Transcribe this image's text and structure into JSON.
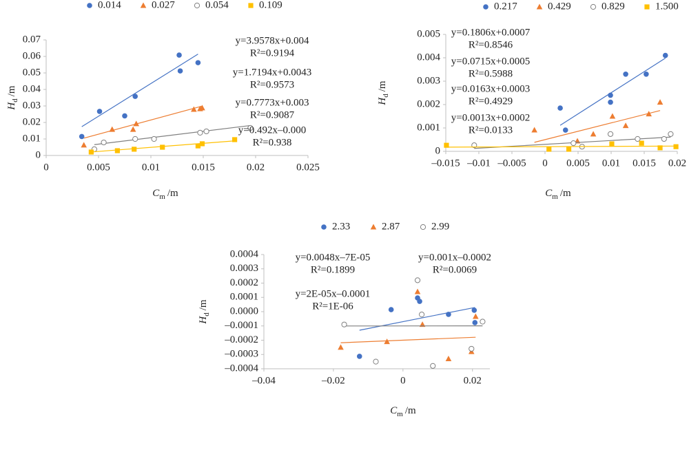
{
  "chart_data": [
    {
      "type": "scatter",
      "xlabel": {
        "symbol": "C",
        "subscript": "m",
        "unit": "/m"
      },
      "ylabel": {
        "symbol": "H",
        "subscript": "d",
        "unit": "/m"
      },
      "xlim": [
        0,
        0.025
      ],
      "xticks": [
        0,
        0.005,
        0.01,
        0.015,
        0.02,
        0.025
      ],
      "ylim": [
        0,
        0.07
      ],
      "yticks": [
        0,
        0.01,
        0.02,
        0.03,
        0.04,
        0.05,
        0.06,
        0.07
      ],
      "grid": false,
      "series": [
        {
          "name": "0.014",
          "color": "#4472c4",
          "marker": "circle",
          "x": [
            0.0034,
            0.0051,
            0.0075,
            0.0085,
            0.0127,
            0.0128,
            0.0145
          ],
          "values": [
            0.0115,
            0.0267,
            0.024,
            0.0358,
            0.0608,
            0.0512,
            0.0562
          ],
          "trendline": {
            "slope": 3.9578,
            "intercept": 0.004,
            "x_range": [
              0.0034,
              0.0145
            ]
          },
          "equation": "y=3.9578x+0.004",
          "r2": "R²=0.9194"
        },
        {
          "name": "0.027",
          "color": "#ed7d31",
          "marker": "triangle",
          "x": [
            0.0036,
            0.0063,
            0.0083,
            0.0086,
            0.0141,
            0.0147,
            0.0149
          ],
          "values": [
            0.0063,
            0.0158,
            0.0158,
            0.0192,
            0.0279,
            0.0283,
            0.0288
          ],
          "trendline": {
            "slope": 1.7194,
            "intercept": 0.0043,
            "x_range": [
              0.0036,
              0.0149
            ]
          },
          "equation": "y=1.7194x+0.0043",
          "r2": "R²=0.9573"
        },
        {
          "name": "0.054",
          "color": "#7f7f7f",
          "marker": "open-circle",
          "x": [
            0.0046,
            0.0055,
            0.0085,
            0.0103,
            0.0147,
            0.0153,
            0.0195
          ],
          "values": [
            0.0038,
            0.0079,
            0.01,
            0.01,
            0.0138,
            0.0146,
            0.0167
          ],
          "trendline": {
            "slope": 0.7773,
            "intercept": 0.003,
            "x_range": [
              0.0046,
              0.0195
            ]
          },
          "equation": "y=0.7773x+0.003",
          "r2": "R²=0.9087"
        },
        {
          "name": "0.109",
          "color": "#ffc000",
          "marker": "square",
          "x": [
            0.0043,
            0.0068,
            0.0084,
            0.0111,
            0.0145,
            0.0149,
            0.018
          ],
          "values": [
            0.0021,
            0.0029,
            0.0038,
            0.005,
            0.0058,
            0.0071,
            0.0096
          ],
          "trendline": {
            "slope": 0.492,
            "intercept": 0,
            "x_range": [
              0.0043,
              0.018
            ]
          },
          "equation": "y=0.492x–0.000",
          "r2": "R²=0.938"
        }
      ]
    },
    {
      "type": "scatter",
      "xlabel": {
        "symbol": "C",
        "subscript": "m",
        "unit": "/m"
      },
      "ylabel": {
        "symbol": "H",
        "subscript": "d",
        "unit": "/m"
      },
      "xlim": [
        -0.015,
        0.02
      ],
      "xticks": [
        {
          "value": -0.015,
          "label": "–0.015"
        },
        {
          "value": -0.01,
          "label": "–0.01"
        },
        {
          "value": -0.005,
          "label": "–0.005"
        },
        0,
        0.005,
        0.01,
        0.015,
        0.02
      ],
      "ylim": [
        0,
        0.005
      ],
      "yticks": [
        0,
        0.001,
        0.002,
        0.003,
        0.004,
        0.005
      ],
      "grid": false,
      "series": [
        {
          "name": "0.217",
          "color": "#4472c4",
          "marker": "circle",
          "x": [
            0.0023,
            0.0031,
            0.0099,
            0.0099,
            0.0122,
            0.0153,
            0.0182
          ],
          "values": [
            0.00185,
            0.00091,
            0.0024,
            0.0021,
            0.0033,
            0.0033,
            0.0041
          ],
          "trendline": {
            "slope": 0.1806,
            "intercept": 0.0007,
            "x_range": [
              0.0023,
              0.0182
            ]
          },
          "equation": "y=0.1806x+0.0007",
          "r2": "R²=0.8546"
        },
        {
          "name": "0.429",
          "color": "#ed7d31",
          "marker": "triangle",
          "x": [
            -0.0016,
            0.0049,
            0.0073,
            0.0102,
            0.0122,
            0.0157,
            0.0174
          ],
          "values": [
            0.00091,
            0.00044,
            0.00074,
            0.0015,
            0.0011,
            0.0016,
            0.0021
          ],
          "trendline": {
            "slope": 0.0715,
            "intercept": 0.0005,
            "x_range": [
              -0.0016,
              0.0174
            ]
          },
          "equation": "y=0.0715x+0.0005",
          "r2": "R²=0.5988"
        },
        {
          "name": "0.829",
          "color": "#7f7f7f",
          "marker": "open-circle",
          "x": [
            -0.0107,
            0.0043,
            0.0056,
            0.0099,
            0.014,
            0.018,
            0.019
          ],
          "values": [
            0.00026,
            0.00035,
            0.0002,
            0.00074,
            0.00053,
            0.00053,
            0.00074
          ],
          "trendline": {
            "slope": 0.0163,
            "intercept": 0.0003,
            "x_range": [
              -0.0107,
              0.019
            ]
          },
          "equation": "y=0.0163x+0.0003",
          "r2": "R²=0.4929"
        },
        {
          "name": "1.500",
          "color": "#ffc000",
          "marker": "square",
          "x": [
            -0.0149,
            0.0006,
            0.0036,
            0.0101,
            0.0146,
            0.0174,
            0.0198
          ],
          "values": [
            0.00026,
            9e-05,
            9e-05,
            0.00032,
            0.00035,
            0.00015,
            0.0002
          ],
          "trendline": {
            "slope": 0.0013,
            "intercept": 0.0002,
            "x_range": [
              -0.0149,
              0.0198
            ]
          },
          "equation": "y=0.0013x+0.0002",
          "r2": "R²=0.0133"
        }
      ]
    },
    {
      "type": "scatter",
      "xlabel": {
        "symbol": "C",
        "subscript": "m",
        "unit": "/m"
      },
      "ylabel": {
        "symbol": "H",
        "subscript": "d",
        "unit": "/m"
      },
      "xlim": [
        -0.04,
        0.025
      ],
      "xticks": [
        {
          "value": -0.04,
          "label": "–0.04"
        },
        {
          "value": -0.02,
          "label": "–0.02"
        },
        0,
        0.02
      ],
      "ylim": [
        -0.0004,
        0.0004
      ],
      "yticks": [
        {
          "value": -0.0004,
          "label": "–0.0004"
        },
        {
          "value": -0.0003,
          "label": "–0.0003"
        },
        {
          "value": -0.0002,
          "label": "–0.0002"
        },
        {
          "value": -0.0001,
          "label": "–0.0001"
        },
        {
          "value": 0,
          "label": "0.0000"
        },
        0.0001,
        0.0002,
        0.0003,
        0.0004
      ],
      "grid": false,
      "series": [
        {
          "name": "2.33",
          "color": "#4472c4",
          "marker": "circle",
          "x": [
            -0.0034,
            -0.0125,
            0.0042,
            0.0048,
            0.0131,
            0.0205,
            0.0207
          ],
          "values": [
            1.4e-05,
            -0.000313,
            9.6e-05,
            7.2e-05,
            -1.9e-05,
            1e-05,
            -7.7e-05
          ],
          "trendline": {
            "slope": 0.0048,
            "intercept": -7e-05,
            "x_range": [
              -0.0125,
              0.0207
            ]
          },
          "equation": "y=0.0048x–7E-05",
          "r2": "R²=0.1899"
        },
        {
          "name": "2.87",
          "color": "#ed7d31",
          "marker": "triangle",
          "x": [
            -0.0179,
            -0.0046,
            0.0042,
            0.0056,
            0.0131,
            0.0197,
            0.0209
          ],
          "values": [
            -0.00025,
            -0.00021,
            0.00014,
            -9e-05,
            -0.00033,
            -0.00028,
            -3.4e-05
          ],
          "trendline": {
            "slope": 0.001,
            "intercept": -0.0002,
            "x_range": [
              -0.0179,
              0.0209
            ]
          },
          "equation": "y=0.001x–0.0002",
          "r2": "R²=0.0069"
        },
        {
          "name": "2.99",
          "color": "#7f7f7f",
          "marker": "open-circle",
          "x": [
            -0.0169,
            -0.0078,
            0.0042,
            0.0054,
            0.0086,
            0.0197,
            0.0229
          ],
          "values": [
            -9e-05,
            -0.00035,
            0.00022,
            -2e-05,
            -0.00038,
            -0.00026,
            -7e-05
          ],
          "trendline": {
            "slope": 2e-05,
            "intercept": -0.0001,
            "x_range": [
              -0.0169,
              0.0229
            ]
          },
          "equation": "y=2E-05x–0.0001",
          "r2": "R²=1E-06"
        }
      ]
    }
  ]
}
